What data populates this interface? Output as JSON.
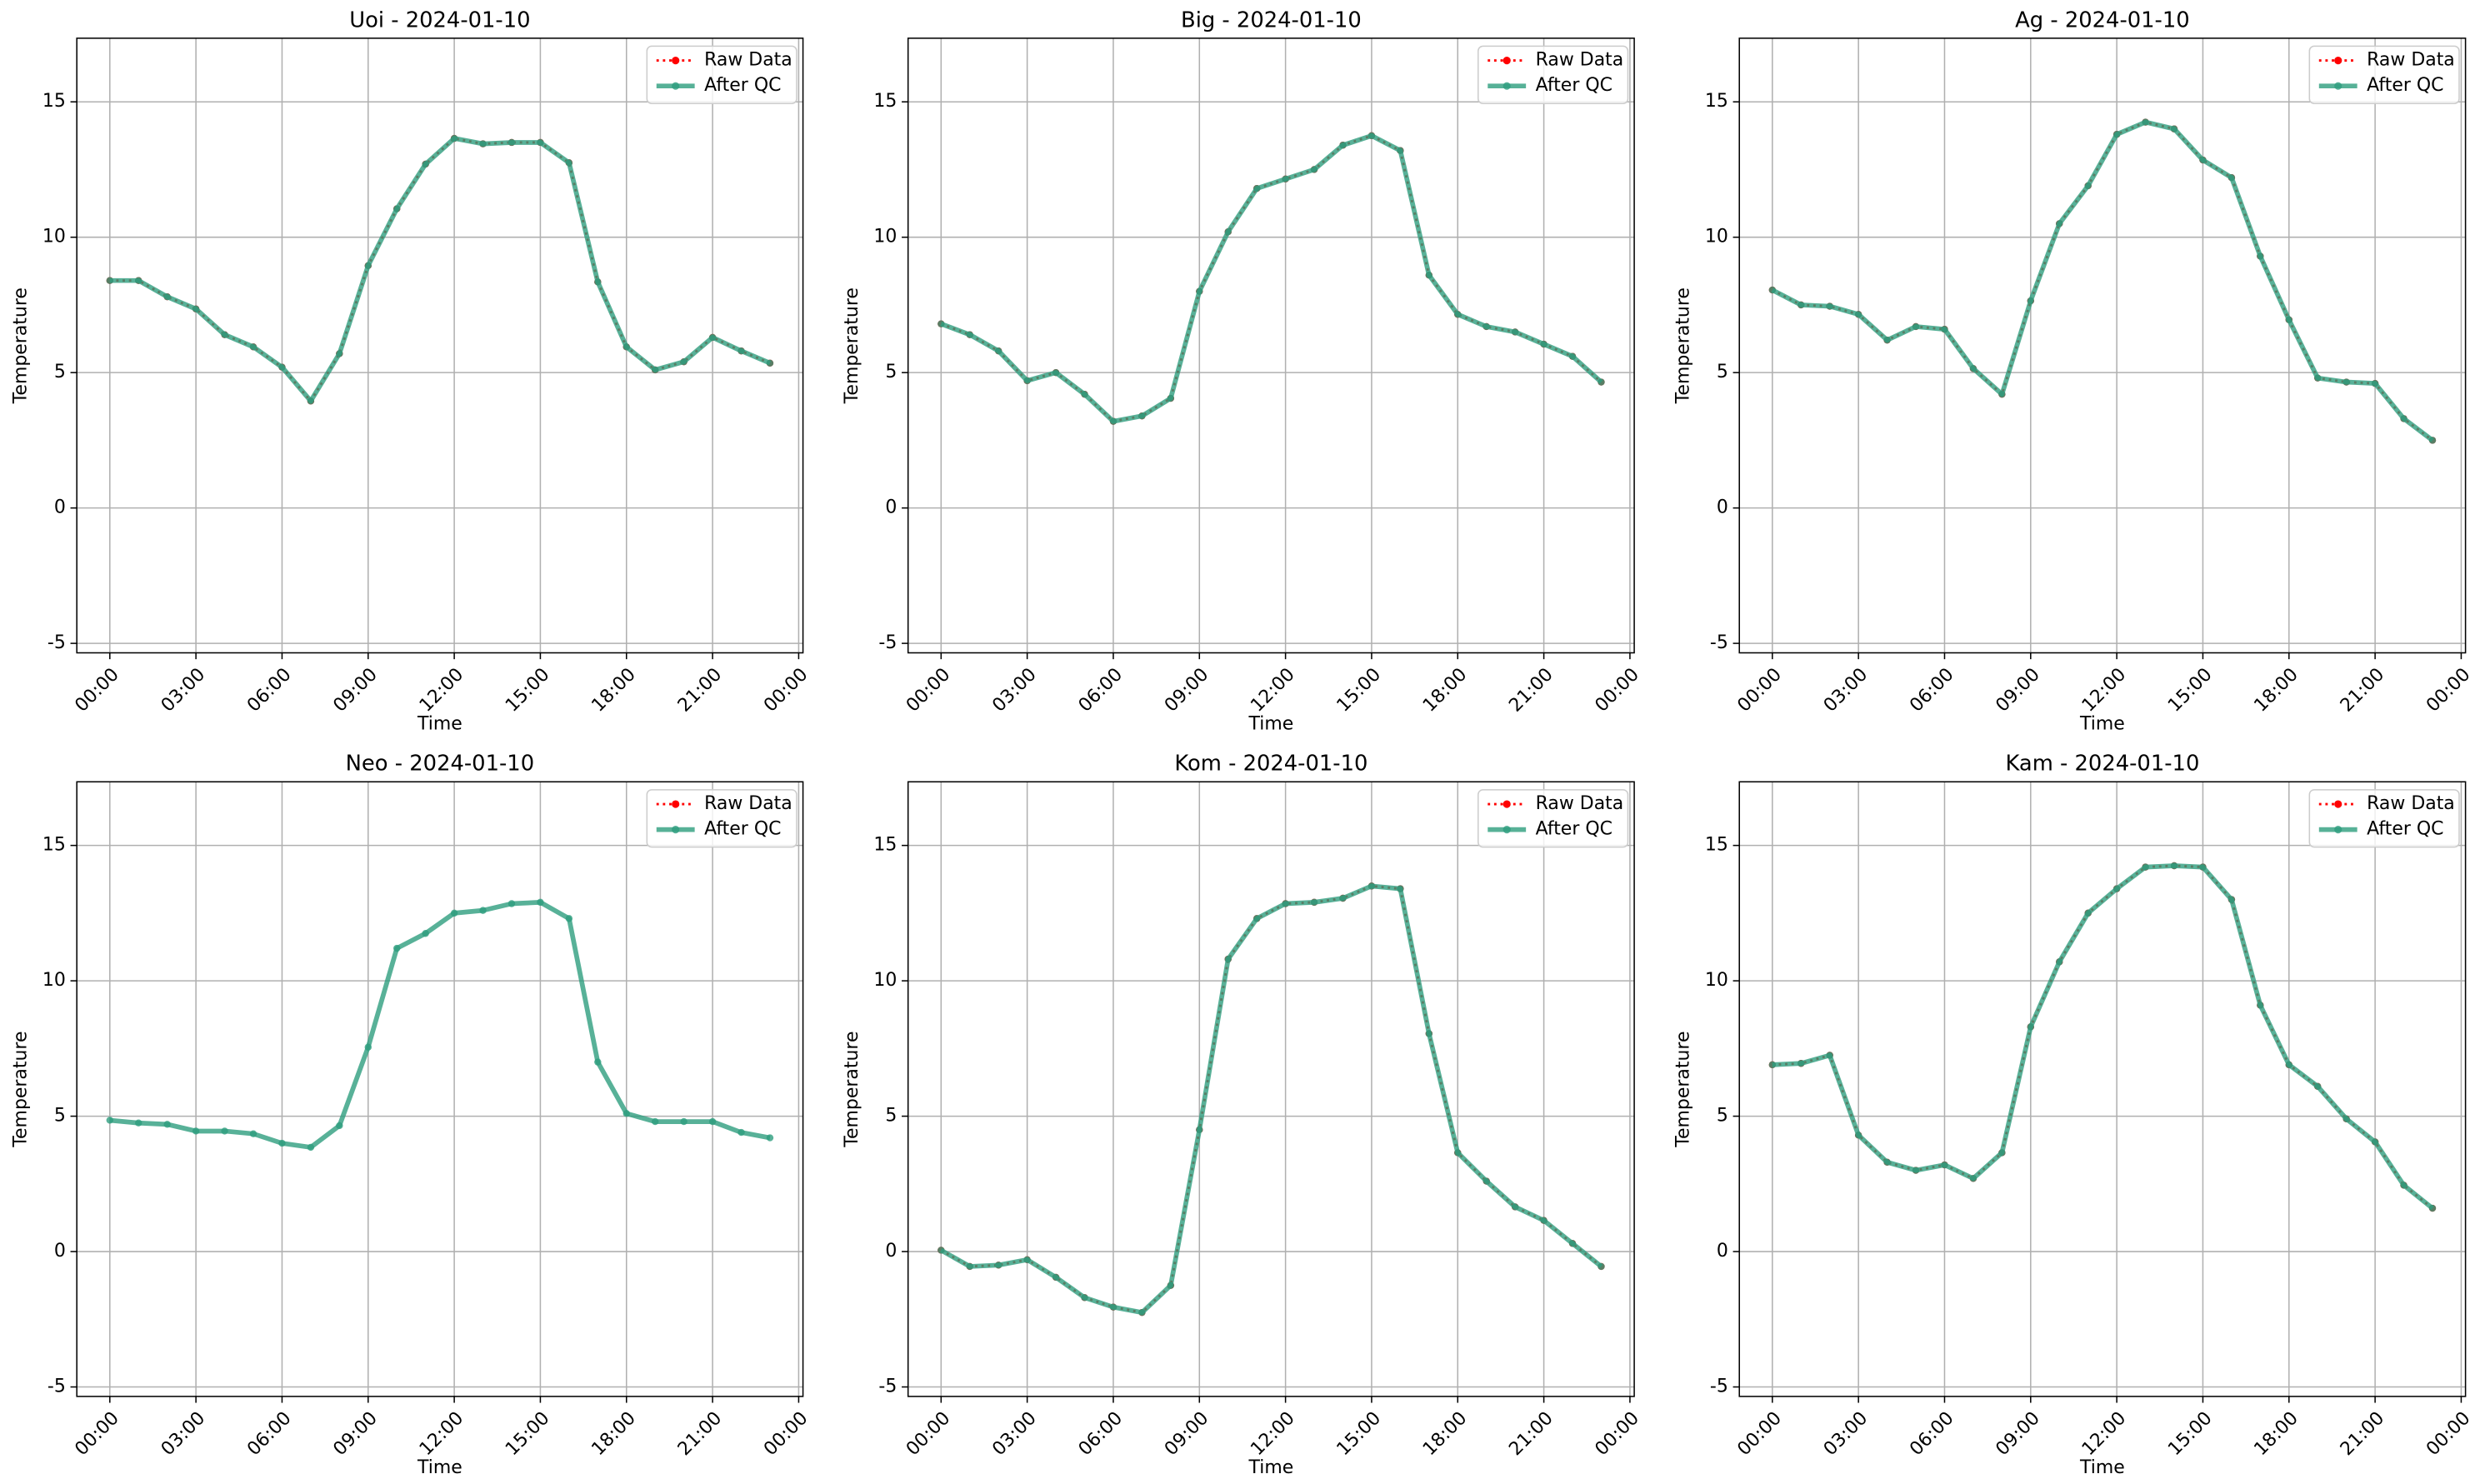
{
  "chart_data": [
    {
      "type": "line",
      "title": "Uoi - 2024-01-10",
      "xlabel": "Time",
      "ylabel": "Temperature",
      "x": [
        0,
        1,
        2,
        3,
        4,
        5,
        6,
        7,
        8,
        9,
        10,
        11,
        12,
        13,
        14,
        15,
        16,
        17,
        18,
        19,
        20,
        21,
        22,
        23
      ],
      "series": [
        {
          "name": "Raw Data",
          "color": "#ff0000",
          "values": [
            8.4,
            8.4,
            7.8,
            7.35,
            6.4,
            5.95,
            5.2,
            3.95,
            5.7,
            8.95,
            11.05,
            12.7,
            13.65,
            13.45,
            13.5,
            13.5,
            12.75,
            8.35,
            5.95,
            5.1,
            5.4,
            6.3,
            5.8,
            5.35
          ]
        },
        {
          "name": "After QC",
          "color": "#2e9e7e",
          "values": [
            8.4,
            8.4,
            7.8,
            7.35,
            6.4,
            5.95,
            5.2,
            3.95,
            5.7,
            8.95,
            11.05,
            12.7,
            13.65,
            13.45,
            13.5,
            13.5,
            12.75,
            8.35,
            5.95,
            5.1,
            5.4,
            6.3,
            5.8,
            5.35
          ]
        }
      ],
      "xlim": [
        -1.15,
        24.15
      ],
      "ylim": [
        -5.35,
        17.35
      ],
      "xticks": [
        {
          "value": 0,
          "label": "00:00"
        },
        {
          "value": 3,
          "label": "03:00"
        },
        {
          "value": 6,
          "label": "06:00"
        },
        {
          "value": 9,
          "label": "09:00"
        },
        {
          "value": 12,
          "label": "12:00"
        },
        {
          "value": 15,
          "label": "15:00"
        },
        {
          "value": 18,
          "label": "18:00"
        },
        {
          "value": 21,
          "label": "21:00"
        },
        {
          "value": 24,
          "label": "00:00"
        }
      ],
      "yticks": [
        -5,
        0,
        5,
        10,
        15
      ],
      "grid": true,
      "legend": "upper right"
    },
    {
      "type": "line",
      "title": "Big - 2024-01-10",
      "xlabel": "Time",
      "ylabel": "Temperature",
      "x": [
        0,
        1,
        2,
        3,
        4,
        5,
        6,
        7,
        8,
        9,
        10,
        11,
        12,
        13,
        14,
        15,
        16,
        17,
        18,
        19,
        20,
        21,
        22,
        23
      ],
      "series": [
        {
          "name": "Raw Data",
          "color": "#ff0000",
          "values": [
            6.8,
            6.4,
            5.8,
            4.7,
            5.0,
            4.2,
            3.2,
            3.4,
            4.05,
            8.0,
            10.2,
            11.8,
            12.15,
            12.5,
            13.4,
            13.75,
            13.2,
            8.6,
            7.15,
            6.7,
            6.5,
            6.05,
            5.6,
            4.65
          ]
        },
        {
          "name": "After QC",
          "color": "#2e9e7e",
          "values": [
            6.8,
            6.4,
            5.8,
            4.7,
            5.0,
            4.2,
            3.2,
            3.4,
            4.05,
            8.0,
            10.2,
            11.8,
            12.15,
            12.5,
            13.4,
            13.75,
            13.2,
            8.6,
            7.15,
            6.7,
            6.5,
            6.05,
            5.6,
            4.65
          ]
        }
      ],
      "xlim": [
        -1.15,
        24.15
      ],
      "ylim": [
        -5.35,
        17.35
      ],
      "xticks": [
        {
          "value": 0,
          "label": "00:00"
        },
        {
          "value": 3,
          "label": "03:00"
        },
        {
          "value": 6,
          "label": "06:00"
        },
        {
          "value": 9,
          "label": "09:00"
        },
        {
          "value": 12,
          "label": "12:00"
        },
        {
          "value": 15,
          "label": "15:00"
        },
        {
          "value": 18,
          "label": "18:00"
        },
        {
          "value": 21,
          "label": "21:00"
        },
        {
          "value": 24,
          "label": "00:00"
        }
      ],
      "yticks": [
        -5,
        0,
        5,
        10,
        15
      ],
      "grid": true,
      "legend": "upper right"
    },
    {
      "type": "line",
      "title": "Ag - 2024-01-10",
      "xlabel": "Time",
      "ylabel": "Temperature",
      "x": [
        0,
        1,
        2,
        3,
        4,
        5,
        6,
        7,
        8,
        9,
        10,
        11,
        12,
        13,
        14,
        15,
        16,
        17,
        18,
        19,
        20,
        21,
        22,
        23
      ],
      "series": [
        {
          "name": "Raw Data",
          "color": "#ff0000",
          "values": [
            8.05,
            7.5,
            7.45,
            7.15,
            6.2,
            6.7,
            6.6,
            5.15,
            4.2,
            7.65,
            10.5,
            11.9,
            13.8,
            14.25,
            14.0,
            12.85,
            12.2,
            9.3,
            6.95,
            4.8,
            4.65,
            4.6,
            3.3,
            2.5
          ]
        },
        {
          "name": "After QC",
          "color": "#2e9e7e",
          "values": [
            8.05,
            7.5,
            7.45,
            7.15,
            6.2,
            6.7,
            6.6,
            5.15,
            4.2,
            7.65,
            10.5,
            11.9,
            13.8,
            14.25,
            14.0,
            12.85,
            12.2,
            9.3,
            6.95,
            4.8,
            4.65,
            4.6,
            3.3,
            2.5
          ]
        }
      ],
      "xlim": [
        -1.15,
        24.15
      ],
      "ylim": [
        -5.35,
        17.35
      ],
      "xticks": [
        {
          "value": 0,
          "label": "00:00"
        },
        {
          "value": 3,
          "label": "03:00"
        },
        {
          "value": 6,
          "label": "06:00"
        },
        {
          "value": 9,
          "label": "09:00"
        },
        {
          "value": 12,
          "label": "12:00"
        },
        {
          "value": 15,
          "label": "15:00"
        },
        {
          "value": 18,
          "label": "18:00"
        },
        {
          "value": 21,
          "label": "21:00"
        },
        {
          "value": 24,
          "label": "00:00"
        }
      ],
      "yticks": [
        -5,
        0,
        5,
        10,
        15
      ],
      "grid": true,
      "legend": "upper right"
    },
    {
      "type": "line",
      "title": "Neo - 2024-01-10",
      "xlabel": "Time",
      "ylabel": "Temperature",
      "x": [
        0,
        1,
        2,
        3,
        4,
        5,
        6,
        7,
        8,
        9,
        10,
        11,
        12,
        13,
        14,
        15,
        16,
        17,
        18,
        19,
        20,
        21,
        22,
        23
      ],
      "series": [
        {
          "name": "Raw Data",
          "color": "#ff0000",
          "values": [
            null,
            null,
            null,
            null,
            null,
            null,
            null,
            null,
            null,
            null,
            null,
            null,
            null,
            null,
            null,
            null,
            null,
            null,
            null,
            null,
            null,
            null,
            null,
            null
          ]
        },
        {
          "name": "After QC",
          "color": "#2e9e7e",
          "values": [
            4.85,
            4.75,
            4.7,
            4.45,
            4.45,
            4.35,
            4.0,
            3.85,
            4.65,
            7.55,
            11.2,
            11.75,
            12.5,
            12.6,
            12.85,
            12.9,
            12.3,
            7.0,
            5.1,
            4.8,
            4.8,
            4.8,
            4.4,
            4.2
          ]
        }
      ],
      "xlim": [
        -1.15,
        24.15
      ],
      "ylim": [
        -5.35,
        17.35
      ],
      "xticks": [
        {
          "value": 0,
          "label": "00:00"
        },
        {
          "value": 3,
          "label": "03:00"
        },
        {
          "value": 6,
          "label": "06:00"
        },
        {
          "value": 9,
          "label": "09:00"
        },
        {
          "value": 12,
          "label": "12:00"
        },
        {
          "value": 15,
          "label": "15:00"
        },
        {
          "value": 18,
          "label": "18:00"
        },
        {
          "value": 21,
          "label": "21:00"
        },
        {
          "value": 24,
          "label": "00:00"
        }
      ],
      "yticks": [
        -5,
        0,
        5,
        10,
        15
      ],
      "grid": true,
      "legend": "upper right"
    },
    {
      "type": "line",
      "title": "Kom - 2024-01-10",
      "xlabel": "Time",
      "ylabel": "Temperature",
      "x": [
        0,
        1,
        2,
        3,
        4,
        5,
        6,
        7,
        8,
        9,
        10,
        11,
        12,
        13,
        14,
        15,
        16,
        17,
        18,
        19,
        20,
        21,
        22,
        23
      ],
      "series": [
        {
          "name": "Raw Data",
          "color": "#ff0000",
          "values": [
            0.05,
            -0.55,
            -0.5,
            -0.3,
            -0.95,
            -1.7,
            -2.05,
            -2.25,
            -1.25,
            4.5,
            10.8,
            12.3,
            12.85,
            12.9,
            13.05,
            13.5,
            13.4,
            8.05,
            3.65,
            2.6,
            1.65,
            1.15,
            0.3,
            -0.55
          ]
        },
        {
          "name": "After QC",
          "color": "#2e9e7e",
          "values": [
            0.05,
            -0.55,
            -0.5,
            -0.3,
            -0.95,
            -1.7,
            -2.05,
            -2.25,
            -1.25,
            4.5,
            10.8,
            12.3,
            12.85,
            12.9,
            13.05,
            13.5,
            13.4,
            8.05,
            3.65,
            2.6,
            1.65,
            1.15,
            0.3,
            -0.55
          ]
        }
      ],
      "xlim": [
        -1.15,
        24.15
      ],
      "ylim": [
        -5.35,
        17.35
      ],
      "xticks": [
        {
          "value": 0,
          "label": "00:00"
        },
        {
          "value": 3,
          "label": "03:00"
        },
        {
          "value": 6,
          "label": "06:00"
        },
        {
          "value": 9,
          "label": "09:00"
        },
        {
          "value": 12,
          "label": "12:00"
        },
        {
          "value": 15,
          "label": "15:00"
        },
        {
          "value": 18,
          "label": "18:00"
        },
        {
          "value": 21,
          "label": "21:00"
        },
        {
          "value": 24,
          "label": "00:00"
        }
      ],
      "yticks": [
        -5,
        0,
        5,
        10,
        15
      ],
      "grid": true,
      "legend": "upper right"
    },
    {
      "type": "line",
      "title": "Kam - 2024-01-10",
      "xlabel": "Time",
      "ylabel": "Temperature",
      "x": [
        0,
        1,
        2,
        3,
        4,
        5,
        6,
        7,
        8,
        9,
        10,
        11,
        12,
        13,
        14,
        15,
        16,
        17,
        18,
        19,
        20,
        21,
        22,
        23
      ],
      "series": [
        {
          "name": "Raw Data",
          "color": "#ff0000",
          "values": [
            6.9,
            6.95,
            7.25,
            4.3,
            3.3,
            3.0,
            3.2,
            2.7,
            3.65,
            8.3,
            10.7,
            12.5,
            13.4,
            14.2,
            14.25,
            14.2,
            13.0,
            9.1,
            6.9,
            6.1,
            4.9,
            4.05,
            2.45,
            1.6
          ]
        },
        {
          "name": "After QC",
          "color": "#2e9e7e",
          "values": [
            6.9,
            6.95,
            7.25,
            4.3,
            3.3,
            3.0,
            3.2,
            2.7,
            3.65,
            8.3,
            10.7,
            12.5,
            13.4,
            14.2,
            14.25,
            14.2,
            13.0,
            9.1,
            6.9,
            6.1,
            4.9,
            4.05,
            2.45,
            1.6
          ]
        }
      ],
      "xlim": [
        -1.15,
        24.15
      ],
      "ylim": [
        -5.35,
        17.35
      ],
      "xticks": [
        {
          "value": 0,
          "label": "00:00"
        },
        {
          "value": 3,
          "label": "03:00"
        },
        {
          "value": 6,
          "label": "06:00"
        },
        {
          "value": 9,
          "label": "09:00"
        },
        {
          "value": 12,
          "label": "12:00"
        },
        {
          "value": 15,
          "label": "15:00"
        },
        {
          "value": 18,
          "label": "18:00"
        },
        {
          "value": 21,
          "label": "21:00"
        },
        {
          "value": 24,
          "label": "00:00"
        }
      ],
      "yticks": [
        -5,
        0,
        5,
        10,
        15
      ],
      "grid": true,
      "legend": "upper right"
    }
  ]
}
